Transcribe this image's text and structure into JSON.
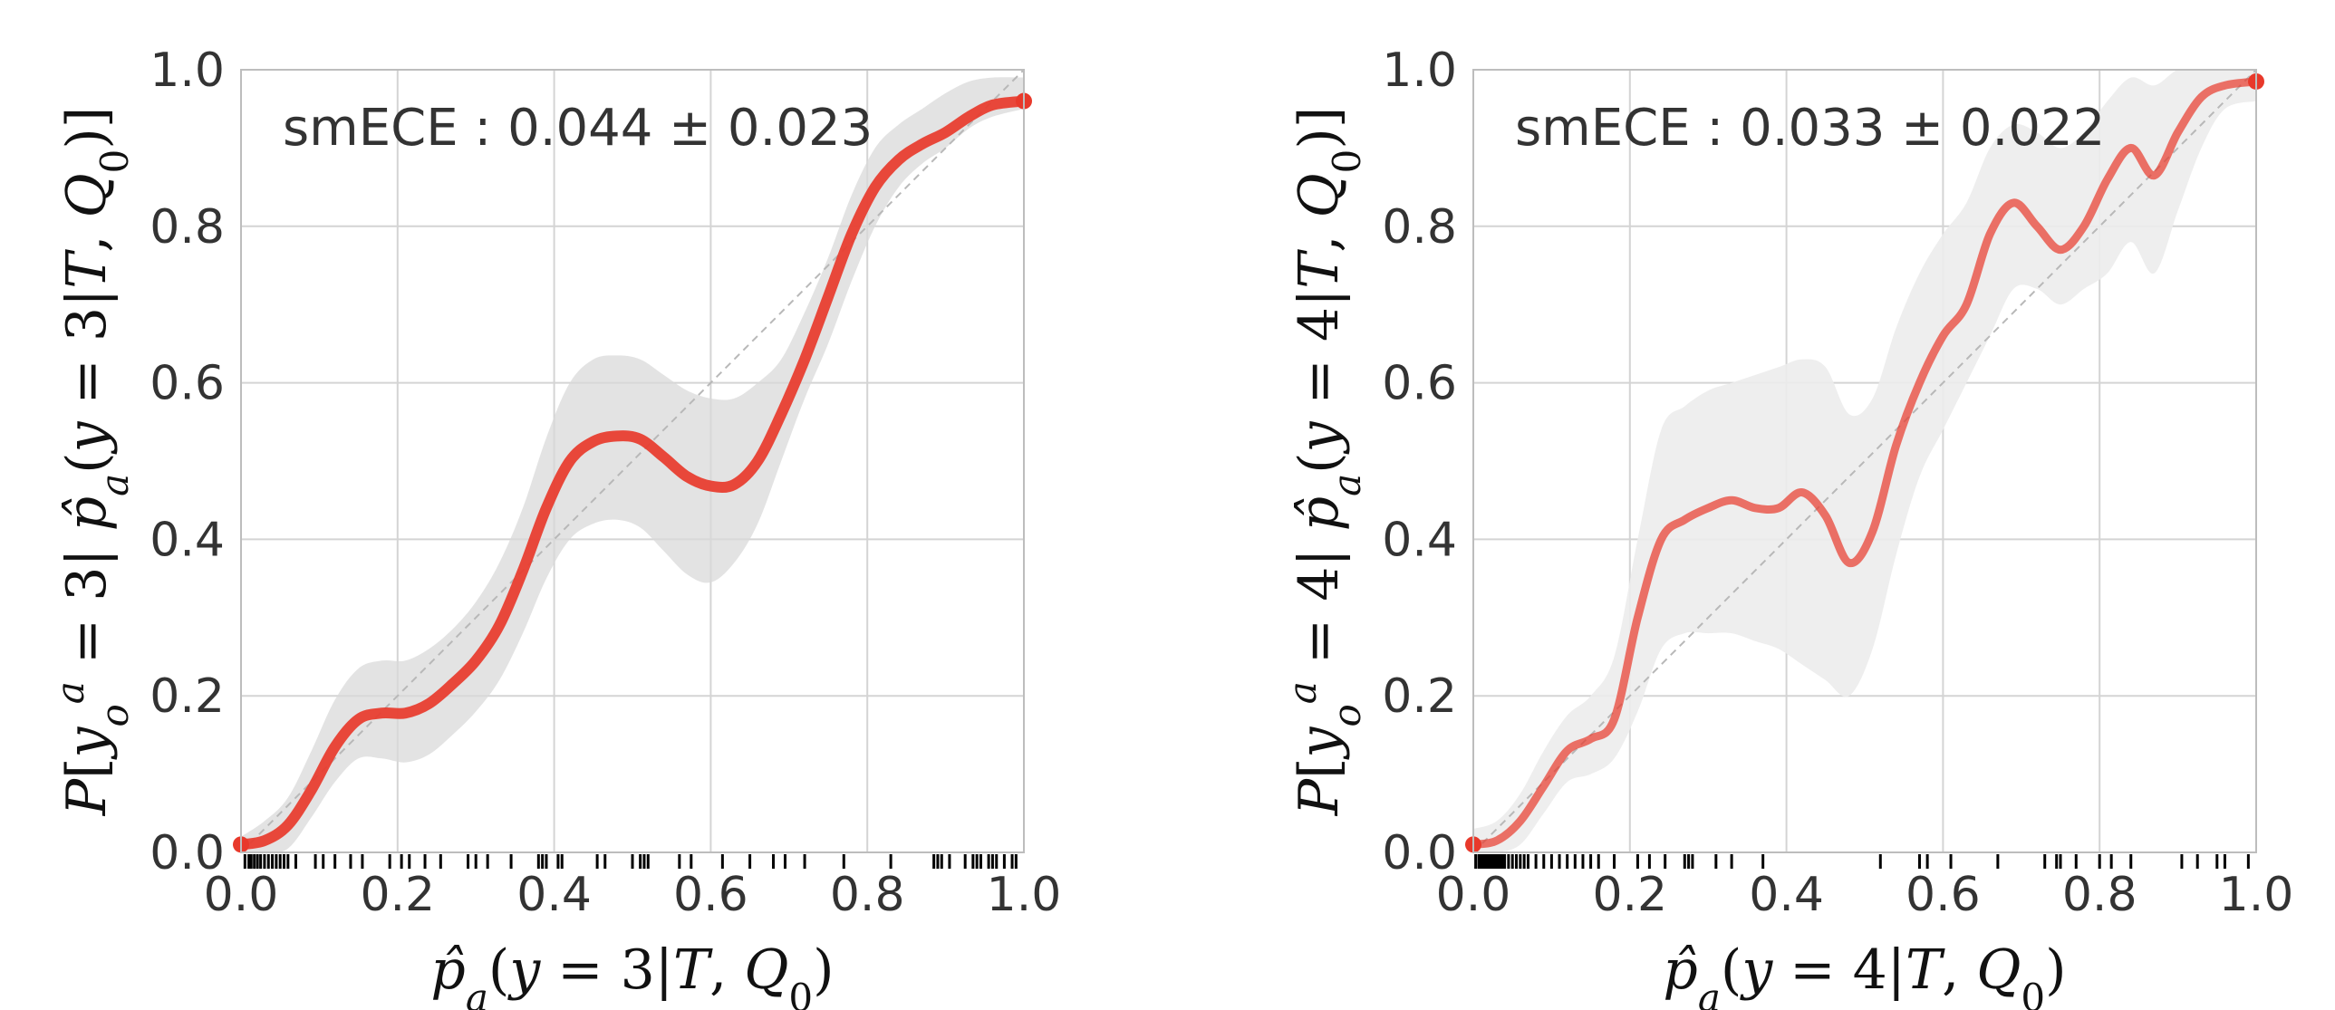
{
  "chart_data": [
    {
      "type": "line",
      "annotation": "smECE : 0.044 ± 0.023",
      "xlabel": "p̂a(y = 3|T, Q0)",
      "ylabel": "P[yoa = 3| p̂a(y = 3|T, Q0)]",
      "xlim": [
        0,
        1
      ],
      "ylim": [
        0,
        1
      ],
      "xticks": [
        "0.0",
        "0.2",
        "0.4",
        "0.6",
        "0.8",
        "1.0"
      ],
      "yticks": [
        "0.0",
        "0.2",
        "0.4",
        "0.6",
        "0.8",
        "1.0"
      ],
      "grid": true,
      "reference_line": "diagonal",
      "curve_color": "#e8392b",
      "band_color": "#d9d9d9",
      "curve": {
        "x": [
          0.0,
          0.03,
          0.06,
          0.09,
          0.12,
          0.15,
          0.18,
          0.21,
          0.24,
          0.27,
          0.3,
          0.33,
          0.36,
          0.39,
          0.42,
          0.45,
          0.48,
          0.51,
          0.54,
          0.57,
          0.6,
          0.63,
          0.66,
          0.69,
          0.72,
          0.75,
          0.78,
          0.81,
          0.84,
          0.87,
          0.9,
          0.93,
          0.96,
          1.0
        ],
        "y": [
          0.01,
          0.015,
          0.035,
          0.08,
          0.135,
          0.17,
          0.178,
          0.178,
          0.19,
          0.215,
          0.245,
          0.29,
          0.36,
          0.44,
          0.5,
          0.525,
          0.532,
          0.528,
          0.505,
          0.48,
          0.468,
          0.47,
          0.5,
          0.56,
          0.63,
          0.71,
          0.79,
          0.85,
          0.885,
          0.905,
          0.92,
          0.94,
          0.955,
          0.96
        ],
        "lower": [
          0.0,
          0.0,
          0.005,
          0.045,
          0.09,
          0.12,
          0.12,
          0.115,
          0.125,
          0.15,
          0.18,
          0.22,
          0.28,
          0.35,
          0.4,
          0.42,
          0.425,
          0.415,
          0.385,
          0.355,
          0.345,
          0.37,
          0.42,
          0.5,
          0.58,
          0.65,
          0.73,
          0.8,
          0.85,
          0.88,
          0.9,
          0.925,
          0.94,
          0.95
        ],
        "upper": [
          0.02,
          0.04,
          0.07,
          0.13,
          0.195,
          0.235,
          0.245,
          0.245,
          0.26,
          0.285,
          0.32,
          0.37,
          0.44,
          0.53,
          0.6,
          0.63,
          0.635,
          0.63,
          0.61,
          0.59,
          0.58,
          0.58,
          0.6,
          0.63,
          0.69,
          0.76,
          0.84,
          0.9,
          0.93,
          0.95,
          0.97,
          0.985,
          0.99,
          0.99
        ]
      },
      "rug_x": [
        0.005,
        0.01,
        0.013,
        0.017,
        0.021,
        0.025,
        0.03,
        0.035,
        0.04,
        0.045,
        0.05,
        0.055,
        0.06,
        0.07,
        0.095,
        0.105,
        0.12,
        0.14,
        0.155,
        0.19,
        0.205,
        0.215,
        0.235,
        0.255,
        0.29,
        0.3,
        0.315,
        0.345,
        0.38,
        0.385,
        0.39,
        0.405,
        0.41,
        0.455,
        0.465,
        0.5,
        0.51,
        0.515,
        0.52,
        0.56,
        0.575,
        0.615,
        0.65,
        0.68,
        0.695,
        0.72,
        0.77,
        0.83,
        0.885,
        0.89,
        0.895,
        0.905,
        0.925,
        0.935,
        0.94,
        0.945,
        0.955,
        0.96,
        0.965,
        0.975,
        0.985,
        0.99
      ]
    },
    {
      "type": "line",
      "annotation": "smECE : 0.033 ± 0.022",
      "xlabel": "p̂a(y = 4|T, Q0)",
      "ylabel": "P[yoa = 4| p̂a(y = 4|T, Q0)]",
      "xlim": [
        0,
        1
      ],
      "ylim": [
        0,
        1
      ],
      "xticks": [
        "0.0",
        "0.2",
        "0.4",
        "0.6",
        "0.8",
        "1.0"
      ],
      "yticks": [
        "0.0",
        "0.2",
        "0.4",
        "0.6",
        "0.8",
        "1.0"
      ],
      "grid": true,
      "reference_line": "diagonal",
      "curve_color": "#e8392b",
      "band_color": "#ececec",
      "curve": {
        "x": [
          0.0,
          0.03,
          0.06,
          0.09,
          0.12,
          0.15,
          0.18,
          0.21,
          0.24,
          0.27,
          0.3,
          0.33,
          0.36,
          0.39,
          0.42,
          0.45,
          0.48,
          0.51,
          0.54,
          0.57,
          0.6,
          0.63,
          0.66,
          0.69,
          0.72,
          0.75,
          0.78,
          0.81,
          0.84,
          0.87,
          0.9,
          0.93,
          0.96,
          1.0
        ],
        "y": [
          0.01,
          0.015,
          0.04,
          0.085,
          0.13,
          0.145,
          0.17,
          0.3,
          0.4,
          0.425,
          0.44,
          0.45,
          0.44,
          0.44,
          0.46,
          0.43,
          0.37,
          0.41,
          0.52,
          0.6,
          0.66,
          0.7,
          0.79,
          0.83,
          0.8,
          0.77,
          0.8,
          0.86,
          0.9,
          0.865,
          0.92,
          0.965,
          0.98,
          0.985
        ],
        "lower": [
          0.0,
          0.0,
          0.01,
          0.05,
          0.09,
          0.1,
          0.12,
          0.18,
          0.26,
          0.28,
          0.28,
          0.28,
          0.27,
          0.26,
          0.24,
          0.22,
          0.2,
          0.26,
          0.38,
          0.48,
          0.54,
          0.6,
          0.66,
          0.72,
          0.72,
          0.7,
          0.72,
          0.74,
          0.78,
          0.74,
          0.82,
          0.9,
          0.95,
          0.96
        ],
        "upper": [
          0.03,
          0.04,
          0.075,
          0.13,
          0.175,
          0.2,
          0.25,
          0.4,
          0.54,
          0.57,
          0.59,
          0.6,
          0.61,
          0.62,
          0.63,
          0.62,
          0.56,
          0.58,
          0.67,
          0.74,
          0.79,
          0.83,
          0.9,
          0.93,
          0.92,
          0.9,
          0.92,
          0.96,
          0.99,
          0.98,
          1.0,
          1.0,
          1.0,
          1.0
        ]
      },
      "rug_x": [
        0.003,
        0.007,
        0.01,
        0.013,
        0.016,
        0.019,
        0.022,
        0.025,
        0.028,
        0.031,
        0.034,
        0.037,
        0.04,
        0.045,
        0.05,
        0.055,
        0.06,
        0.065,
        0.07,
        0.08,
        0.09,
        0.1,
        0.11,
        0.12,
        0.13,
        0.14,
        0.15,
        0.16,
        0.18,
        0.21,
        0.225,
        0.245,
        0.27,
        0.275,
        0.28,
        0.31,
        0.33,
        0.37,
        0.52,
        0.57,
        0.58,
        0.61,
        0.67,
        0.73,
        0.745,
        0.75,
        0.77,
        0.8,
        0.815,
        0.84,
        0.905,
        0.925,
        0.95,
        0.96,
        0.99
      ]
    }
  ]
}
